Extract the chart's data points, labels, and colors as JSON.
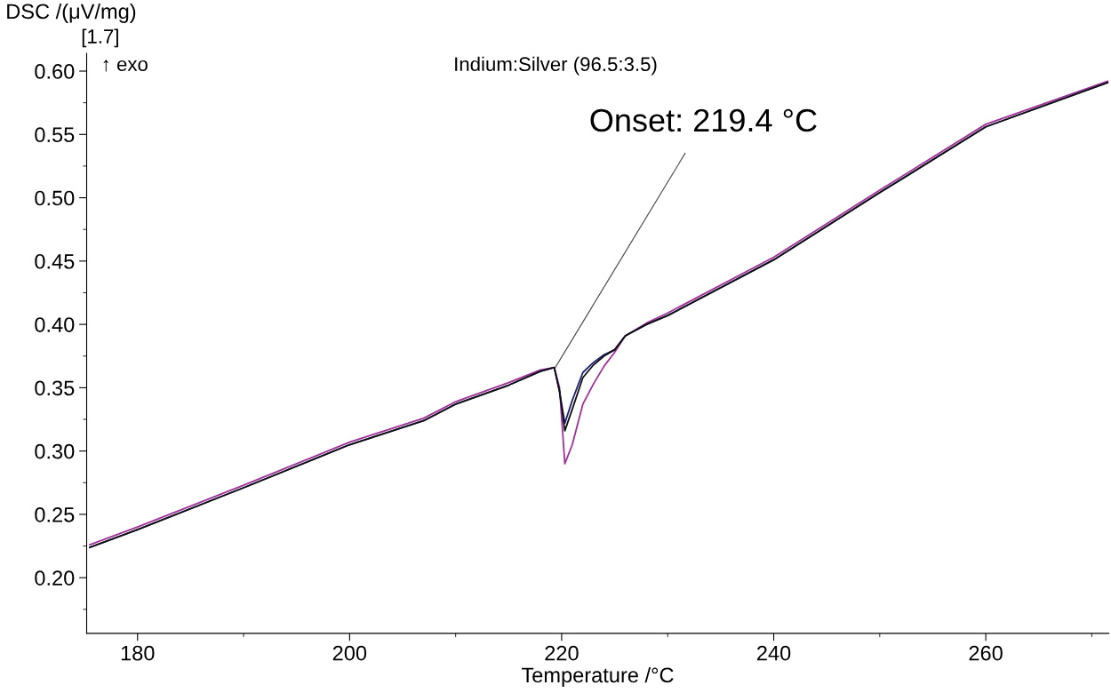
{
  "chart_data": {
    "type": "line",
    "title": "Indium:Silver (96.5:3.5)",
    "xlabel": "Temperature /°C",
    "ylabel": "DSC /(μV/mg)",
    "x": [
      175.5,
      180,
      190,
      200,
      207,
      210,
      215,
      218,
      219.3,
      219.8,
      220.3,
      221,
      222,
      223,
      224,
      225,
      226,
      228,
      230,
      240,
      250,
      260,
      271.5
    ],
    "series": [
      {
        "color": "#a0309a",
        "values": [
          0.226,
          0.24,
          0.273,
          0.307,
          0.326,
          0.339,
          0.354,
          0.364,
          0.366,
          0.35,
          0.29,
          0.305,
          0.337,
          0.353,
          0.367,
          0.378,
          0.391,
          0.401,
          0.409,
          0.453,
          0.506,
          0.558,
          0.592
        ]
      },
      {
        "color": "#1f1f78",
        "values": [
          0.224,
          0.238,
          0.271,
          0.305,
          0.324,
          0.337,
          0.352,
          0.363,
          0.366,
          0.347,
          0.322,
          0.34,
          0.362,
          0.37,
          0.376,
          0.38,
          0.391,
          0.4,
          0.407,
          0.451,
          0.504,
          0.556,
          0.591
        ]
      },
      {
        "color": "#111111",
        "values": [
          0.224,
          0.238,
          0.271,
          0.305,
          0.324,
          0.337,
          0.352,
          0.363,
          0.366,
          0.347,
          0.316,
          0.333,
          0.358,
          0.368,
          0.375,
          0.38,
          0.391,
          0.4,
          0.407,
          0.451,
          0.504,
          0.556,
          0.591
        ]
      }
    ],
    "xlim": [
      175.2,
      271.6
    ],
    "ylim": [
      0.156,
      0.614
    ],
    "xticks": [
      180,
      {
        "value": 190,
        "label": null
      },
      200,
      {
        "value": 210,
        "label": null
      },
      220,
      {
        "value": 230,
        "label": null
      },
      240,
      {
        "value": 250,
        "label": null
      },
      260,
      {
        "value": 270,
        "label": null
      }
    ],
    "yticks": [
      {
        "value": 0.175,
        "label": null
      },
      {
        "value": 0.2,
        "label": "0.20"
      },
      {
        "value": 0.225,
        "label": null
      },
      {
        "value": 0.25,
        "label": "0.25"
      },
      {
        "value": 0.275,
        "label": null
      },
      {
        "value": 0.3,
        "label": "0.30"
      },
      {
        "value": 0.325,
        "label": null
      },
      {
        "value": 0.35,
        "label": "0.35"
      },
      {
        "value": 0.375,
        "label": null
      },
      {
        "value": 0.4,
        "label": "0.40"
      },
      {
        "value": 0.425,
        "label": null
      },
      {
        "value": 0.45,
        "label": "0.45"
      },
      {
        "value": 0.475,
        "label": null
      },
      {
        "value": 0.5,
        "label": "0.50"
      },
      {
        "value": 0.525,
        "label": null
      },
      {
        "value": 0.55,
        "label": "0.55"
      },
      {
        "value": 0.575,
        "label": null
      },
      {
        "value": 0.6,
        "label": "0.60"
      }
    ],
    "annotations": [
      "[1.7]",
      "↑ exo",
      {
        "text": "Onset: 219.4 °C",
        "x": 219.4,
        "y": 0.366
      }
    ],
    "grid": false,
    "legend": false,
    "marker": "none",
    "line_style": "solid"
  }
}
